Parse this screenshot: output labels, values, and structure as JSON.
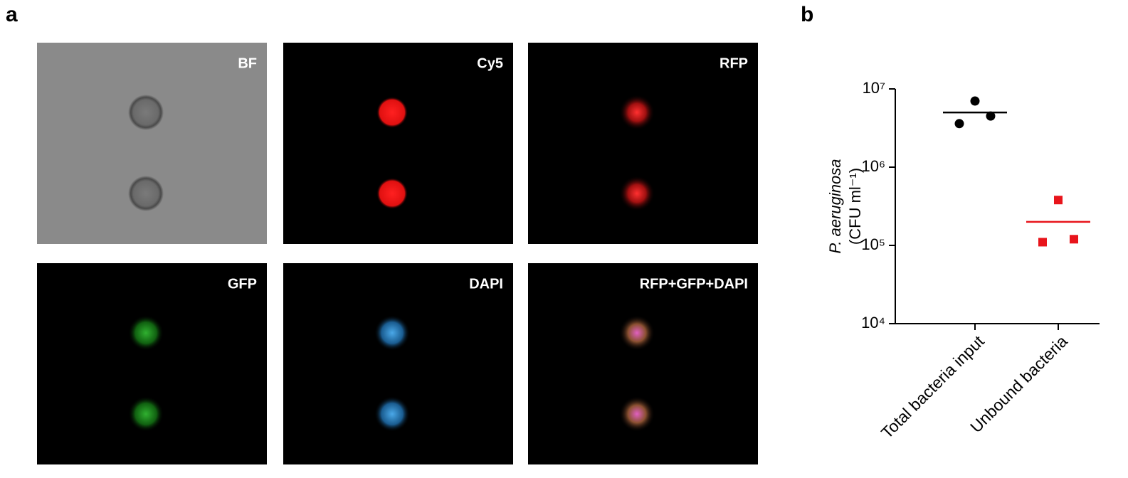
{
  "panel_labels": [
    "a",
    "b"
  ],
  "panels": [
    {
      "label": "BF"
    },
    {
      "label": "Cy5"
    },
    {
      "label": "RFP"
    },
    {
      "label": "GFP"
    },
    {
      "label": "DAPI"
    },
    {
      "label": "RFP+GFP+DAPI"
    }
  ],
  "chart_data": {
    "type": "dot",
    "categories": [
      "Total bacteria input",
      "Unbound bacteria"
    ],
    "ylabel": "P. aeruginosa",
    "ylabel_unit": "(CFU ml⁻¹)",
    "values": [
      [
        3600000,
        7000000,
        4500000
      ],
      [
        110000,
        380000,
        120000
      ]
    ],
    "means": [
      5000000,
      200000
    ],
    "colors": [
      "#000000",
      "#e8141b"
    ],
    "markers": [
      "circle",
      "square"
    ],
    "log_scale": true,
    "ylim": [
      10000,
      10000000
    ],
    "yticks": [
      {
        "value": 10000,
        "label": "10⁴"
      },
      {
        "value": 100000,
        "label": "10⁵"
      },
      {
        "value": 1000000,
        "label": "10⁶"
      },
      {
        "value": 10000000,
        "label": "10⁷"
      }
    ]
  }
}
